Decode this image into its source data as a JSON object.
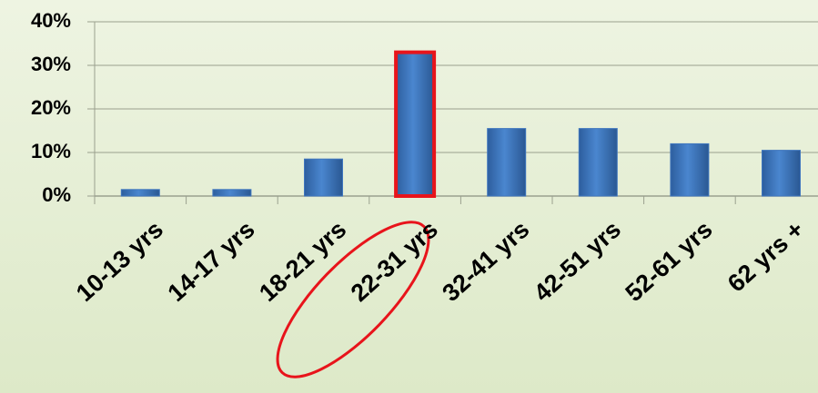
{
  "chart_data": {
    "type": "bar",
    "categories": [
      "10-13 yrs",
      "14-17 yrs",
      "18-21 yrs",
      "22-31 yrs",
      "32-41 yrs",
      "42-51 yrs",
      "52-61 yrs",
      "62 yrs +"
    ],
    "values": [
      1.5,
      1.5,
      8.5,
      33,
      15.5,
      15.5,
      12,
      10.5
    ],
    "color": "#3f76be",
    "ylim": [
      0,
      40
    ],
    "yticks": [
      {
        "value": 0,
        "label": "0%"
      },
      {
        "value": 10,
        "label": "10%"
      },
      {
        "value": 20,
        "label": "20%"
      },
      {
        "value": 30,
        "label": "30%"
      },
      {
        "value": 40,
        "label": "40%"
      }
    ],
    "grid": true,
    "highlight_index": 3,
    "highlight_color": "#e8141b"
  }
}
